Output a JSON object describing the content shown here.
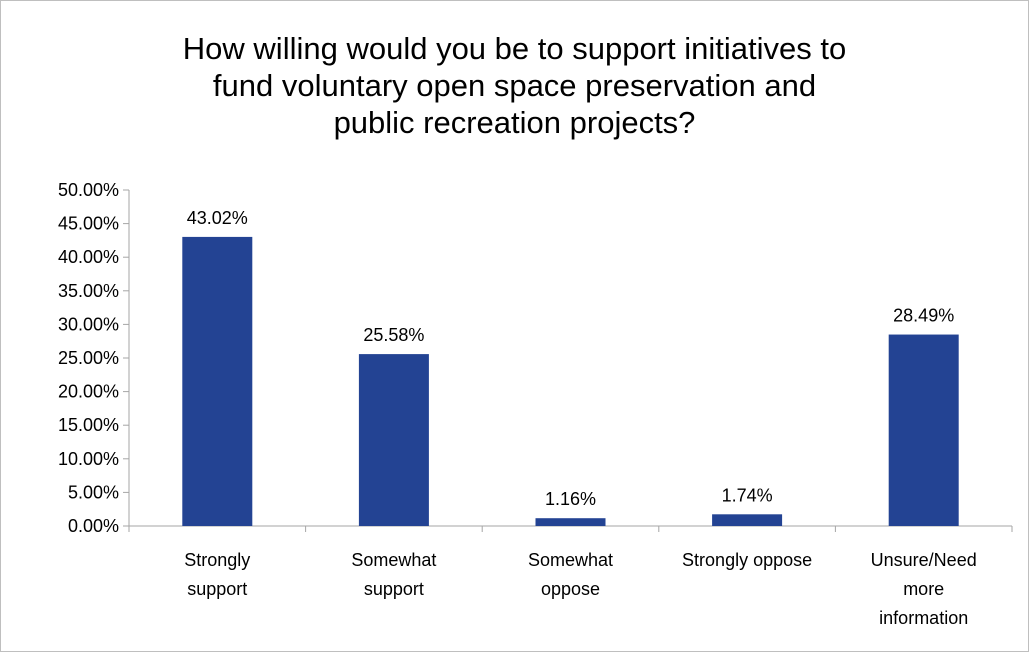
{
  "chart_data": {
    "type": "bar",
    "title_lines": [
      "How willing would you be to support initiatives to",
      "fund voluntary open space preservation and",
      "public recreation projects?"
    ],
    "categories": [
      [
        "Strongly",
        "support"
      ],
      [
        "Somewhat",
        "support"
      ],
      [
        "Somewhat",
        "oppose"
      ],
      [
        "Strongly oppose"
      ],
      [
        "Unsure/Need",
        "more",
        "information"
      ]
    ],
    "values": [
      43.02,
      25.58,
      1.16,
      1.74,
      28.49
    ],
    "data_labels": [
      "43.02%",
      "25.58%",
      "1.16%",
      "1.74%",
      "28.49%"
    ],
    "yticks": [
      0,
      5,
      10,
      15,
      20,
      25,
      30,
      35,
      40,
      45,
      50
    ],
    "ytick_labels": [
      "0.00%",
      "5.00%",
      "10.00%",
      "15.00%",
      "20.00%",
      "25.00%",
      "30.00%",
      "35.00%",
      "40.00%",
      "45.00%",
      "50.00%"
    ],
    "ylim": [
      0,
      50
    ],
    "grid": false,
    "legend": "none",
    "bar_color": "#234393",
    "axis_color": "#a6a6a6"
  }
}
